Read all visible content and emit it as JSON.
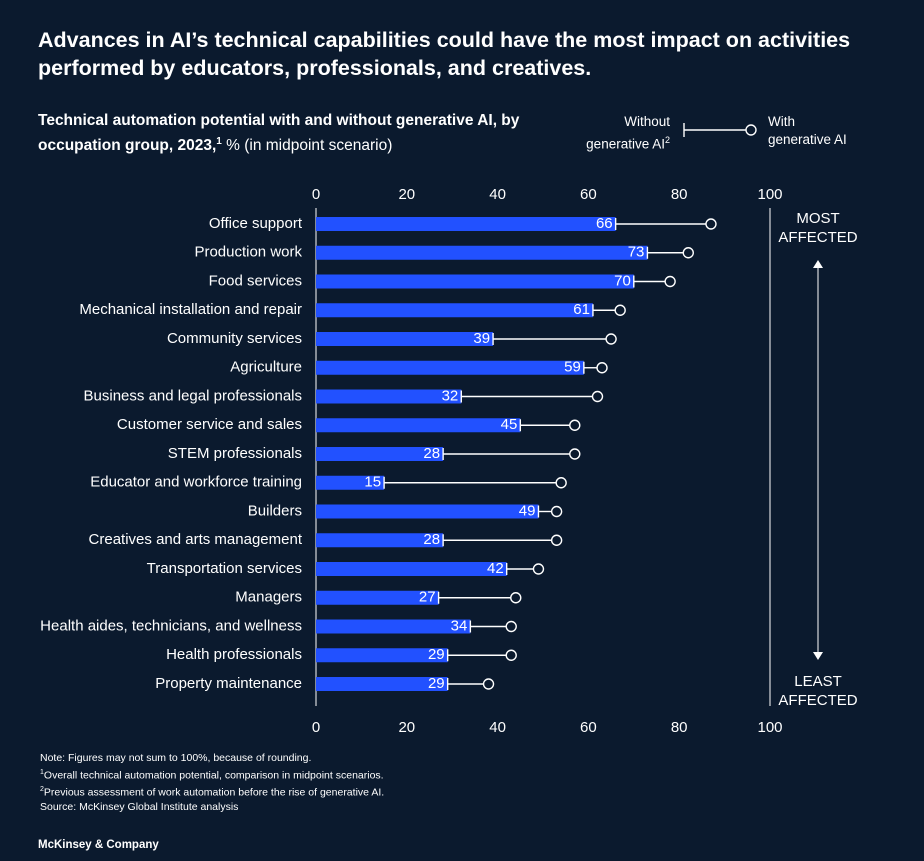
{
  "headline": "Advances in AI’s technical capabilities could have the most impact on activities performed by educators, professionals, and creatives.",
  "subtitle": {
    "bold": "Technical automation potential with and without generative AI, by occupation group, 2023,",
    "sup": "1",
    "rest": " % (in midpoint scenario)"
  },
  "legend": {
    "without_line1": "Without",
    "without_line2": "generative AI",
    "without_sup": "2",
    "with_line1": "With",
    "with_line2": "generative AI"
  },
  "chart_data": {
    "type": "bar",
    "title": "Technical automation potential with and without generative AI, by occupation group, 2023, % (in midpoint scenario)",
    "xlim": [
      0,
      100
    ],
    "ticks": [
      "0",
      "20",
      "40",
      "60",
      "80",
      "100"
    ],
    "tick_values": [
      0,
      20,
      40,
      60,
      80,
      100
    ],
    "categories": [
      "Office support",
      "Production work",
      "Food services",
      "Mechanical installation and repair",
      "Community services",
      "Agriculture",
      "Business and legal professionals",
      "Customer service and sales",
      "STEM professionals",
      "Educator and workforce training",
      "Builders",
      "Creatives and arts management",
      "Transportation services",
      "Managers",
      "Health aides, technicians, and wellness",
      "Health professionals",
      "Property maintenance"
    ],
    "series": [
      {
        "name": "Without generative AI",
        "values": [
          66,
          73,
          70,
          61,
          39,
          59,
          32,
          45,
          28,
          15,
          49,
          28,
          42,
          27,
          34,
          29,
          29
        ],
        "labels": [
          "66",
          "73",
          "70",
          "61",
          "39",
          "59",
          "32",
          "45",
          "28",
          "15",
          "49",
          "28",
          "42",
          "27",
          "34",
          "29",
          "29"
        ]
      },
      {
        "name": "With generative AI",
        "values": [
          87,
          82,
          78,
          67,
          65,
          63,
          62,
          57,
          57,
          54,
          53,
          53,
          49,
          44,
          43,
          43,
          38
        ]
      }
    ],
    "most_affected": [
      "MOST",
      "AFFECTED"
    ],
    "least_affected": [
      "LEAST",
      "AFFECTED"
    ],
    "colors": {
      "bar": "#2251ff",
      "background": "#0b1a2e",
      "text": "#ffffff"
    }
  },
  "footnotes": {
    "note": "Note: Figures may not sum to 100%, because of rounding.",
    "fn1_sup": "1",
    "fn1": "Overall technical automation potential, comparison in midpoint scenarios.",
    "fn2_sup": "2",
    "fn2": "Previous assessment of work automation before the rise of generative AI.",
    "source": "Source: McKinsey Global Institute analysis"
  },
  "brand": "McKinsey & Company"
}
